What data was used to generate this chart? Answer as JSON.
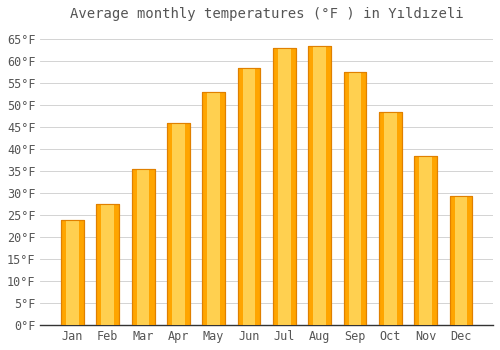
{
  "title": "Average monthly temperatures (°F ) in Yıldızeli",
  "months": [
    "Jan",
    "Feb",
    "Mar",
    "Apr",
    "May",
    "Jun",
    "Jul",
    "Aug",
    "Sep",
    "Oct",
    "Nov",
    "Dec"
  ],
  "values": [
    24.0,
    27.5,
    35.5,
    46.0,
    53.0,
    58.5,
    63.0,
    63.5,
    57.5,
    48.5,
    38.5,
    29.5
  ],
  "bar_color": "#FFA500",
  "bar_edge_color": "#E08000",
  "background_color": "#FFFFFF",
  "grid_color": "#CCCCCC",
  "text_color": "#555555",
  "axis_color": "#333333",
  "ylim": [
    0,
    68
  ],
  "yticks": [
    0,
    5,
    10,
    15,
    20,
    25,
    30,
    35,
    40,
    45,
    50,
    55,
    60,
    65
  ],
  "ylabel_suffix": "°F",
  "title_fontsize": 10,
  "tick_fontsize": 8.5,
  "bar_width": 0.65
}
